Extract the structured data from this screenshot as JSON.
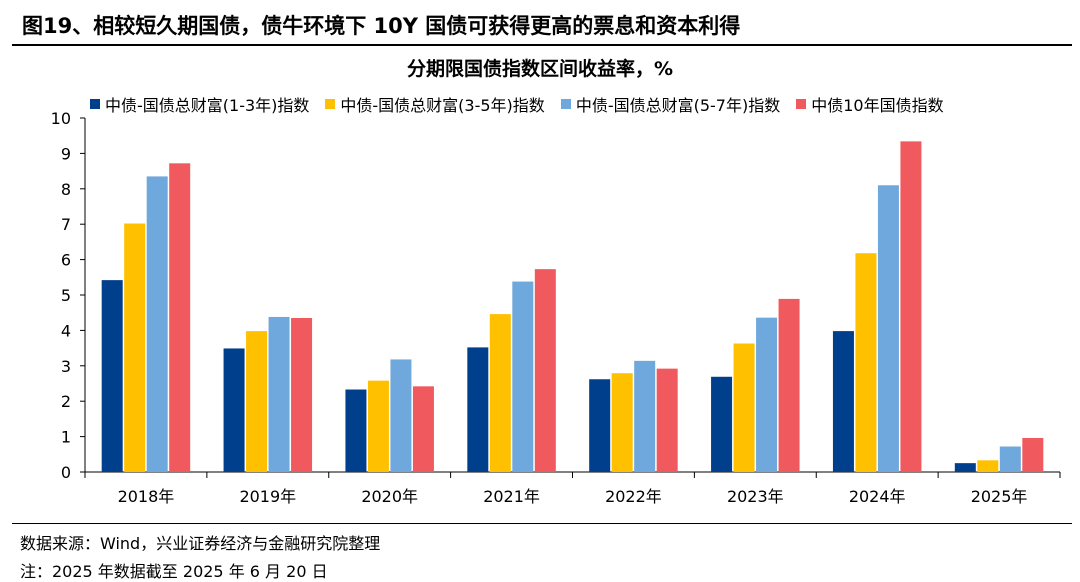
{
  "figure_title": "图19、相较短久期国债，债牛环境下 10Y 国债可获得更高的票息和资本利得",
  "source": "数据来源：Wind，兴业证券经济与金融研究院整理",
  "note": "注：2025 年数据截至 2025 年 6 月 20 日",
  "chart_data": {
    "type": "bar",
    "title": "分期限国债指数区间收益率，%",
    "xlabel": "",
    "ylabel": "",
    "ylim": [
      0,
      10
    ],
    "yticks": [
      "0",
      "1",
      "2",
      "3",
      "4",
      "5",
      "6",
      "7",
      "8",
      "9",
      "10"
    ],
    "grid": false,
    "legend_position": "top",
    "categories": [
      "2018年",
      "2019年",
      "2020年",
      "2021年",
      "2022年",
      "2023年",
      "2024年",
      "2025年"
    ],
    "series": [
      {
        "name": "中债-国债总财富(1-3年)指数",
        "color": "#003f8c",
        "values": [
          5.42,
          3.49,
          2.33,
          3.52,
          2.62,
          2.69,
          3.98,
          0.25
        ]
      },
      {
        "name": "中债-国债总财富(3-5年)指数",
        "color": "#ffc000",
        "values": [
          7.02,
          3.98,
          2.58,
          4.46,
          2.79,
          3.63,
          6.18,
          0.33
        ]
      },
      {
        "name": "中债-国债总财富(5-7年)指数",
        "color": "#6fa8dc",
        "values": [
          8.35,
          4.38,
          3.18,
          5.38,
          3.14,
          4.36,
          8.1,
          0.72
        ]
      },
      {
        "name": "中债10年国债指数",
        "color": "#f05a5f",
        "values": [
          8.72,
          4.35,
          2.42,
          5.73,
          2.92,
          4.89,
          9.34,
          0.96
        ]
      }
    ]
  }
}
